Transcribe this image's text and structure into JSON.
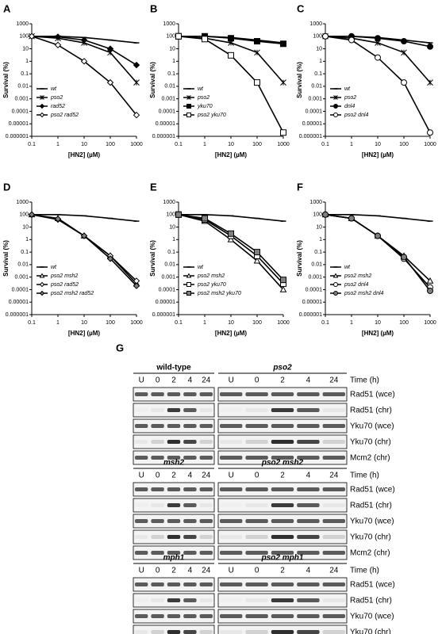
{
  "chart_data": [
    {
      "type": "line",
      "panel": "A",
      "x_label": "[HN2] (µM)",
      "y_label": "Survival (%)",
      "xscale": "log",
      "yscale": "log",
      "x": [
        0.1,
        1,
        10,
        100,
        1000
      ],
      "xlim": [
        0.1,
        1000
      ],
      "xticks": [
        0.1,
        1,
        10,
        100,
        1000
      ],
      "ylim": [
        1e-06,
        1000
      ],
      "yticks": [
        {
          "value": 1e-06,
          "label": "0.000001"
        },
        1e-05,
        0.0001,
        0.001,
        0.01,
        0.1,
        1,
        10,
        100,
        1000
      ],
      "series": [
        {
          "name": "wt",
          "color": "#000000",
          "marker": "dash",
          "marker_fill": "#000000",
          "values": [
            100,
            100,
            80,
            50,
            30
          ]
        },
        {
          "name": "pso2",
          "color": "#000000",
          "marker": "star",
          "marker_fill": "#000000",
          "values": [
            100,
            70,
            30,
            5,
            0.02
          ]
        },
        {
          "name": "rad52",
          "color": "#000000",
          "marker": "diamond",
          "marker_fill": "#000000",
          "values": [
            100,
            90,
            50,
            10,
            0.5
          ]
        },
        {
          "name": "pso2 rad52",
          "color": "#000000",
          "marker": "diamond",
          "marker_fill": "#ffffff",
          "values": [
            100,
            20,
            1,
            0.02,
            5e-05
          ]
        }
      ]
    },
    {
      "type": "line",
      "panel": "B",
      "x_label": "[HN2] (µM)",
      "y_label": "Survival (%)",
      "xscale": "log",
      "yscale": "log",
      "x": [
        0.1,
        1,
        10,
        100,
        1000
      ],
      "xlim": [
        0.1,
        1000
      ],
      "xticks": [
        0.1,
        1,
        10,
        100,
        1000
      ],
      "ylim": [
        1e-06,
        1000
      ],
      "yticks": [
        {
          "value": 1e-06,
          "label": "0.000001"
        },
        1e-05,
        0.0001,
        0.001,
        0.01,
        0.1,
        1,
        10,
        100,
        1000
      ],
      "series": [
        {
          "name": "wt",
          "color": "#000000",
          "marker": "dash",
          "marker_fill": "#000000",
          "values": [
            100,
            100,
            80,
            50,
            30
          ]
        },
        {
          "name": "pso2",
          "color": "#000000",
          "marker": "star",
          "marker_fill": "#000000",
          "values": [
            100,
            70,
            30,
            5,
            0.02
          ]
        },
        {
          "name": "yku70",
          "color": "#000000",
          "marker": "square",
          "marker_fill": "#000000",
          "values": [
            100,
            100,
            70,
            40,
            25
          ]
        },
        {
          "name": "pso2 yku70",
          "color": "#000000",
          "marker": "square",
          "marker_fill": "#ffffff",
          "values": [
            100,
            60,
            3,
            0.02,
            2e-06
          ]
        }
      ]
    },
    {
      "type": "line",
      "panel": "C",
      "x_label": "[HN2] (µM)",
      "y_label": "Survival (%)",
      "xscale": "log",
      "yscale": "log",
      "x": [
        0.1,
        1,
        10,
        100,
        1000
      ],
      "xlim": [
        0.1,
        1000
      ],
      "xticks": [
        0.1,
        1,
        10,
        100,
        1000
      ],
      "ylim": [
        1e-06,
        1000
      ],
      "yticks": [
        {
          "value": 1e-06,
          "label": "0.000001"
        },
        1e-05,
        0.0001,
        0.001,
        0.01,
        0.1,
        1,
        10,
        100,
        1000
      ],
      "series": [
        {
          "name": "wt",
          "color": "#000000",
          "marker": "dash",
          "marker_fill": "#000000",
          "values": [
            100,
            100,
            80,
            50,
            30
          ]
        },
        {
          "name": "pso2",
          "color": "#000000",
          "marker": "star",
          "marker_fill": "#000000",
          "values": [
            100,
            70,
            30,
            5,
            0.02
          ]
        },
        {
          "name": "dnl4",
          "color": "#000000",
          "marker": "circle",
          "marker_fill": "#000000",
          "values": [
            100,
            100,
            70,
            40,
            15
          ]
        },
        {
          "name": "pso2 dnl4",
          "color": "#000000",
          "marker": "circle",
          "marker_fill": "#ffffff",
          "values": [
            100,
            50,
            2,
            0.02,
            2e-06
          ]
        }
      ]
    },
    {
      "type": "line",
      "panel": "D",
      "x_label": "[HN2] (µM)",
      "y_label": "Survival (%)",
      "xscale": "log",
      "yscale": "log",
      "x": [
        0.1,
        1,
        10,
        100,
        1000
      ],
      "xlim": [
        0.1,
        1000
      ],
      "xticks": [
        0.1,
        1,
        10,
        100,
        1000
      ],
      "ylim": [
        1e-06,
        1000
      ],
      "yticks": [
        {
          "value": 1e-06,
          "label": "0.000001"
        },
        1e-05,
        0.0001,
        0.001,
        0.01,
        0.1,
        1,
        10,
        100,
        1000
      ],
      "series": [
        {
          "name": "wt",
          "color": "#000000",
          "marker": "dash",
          "marker_fill": "#000000",
          "values": [
            100,
            100,
            80,
            50,
            30
          ]
        },
        {
          "name": "pso2 msh2",
          "color": "#000000",
          "marker": "triangle",
          "marker_fill": "#ffffff",
          "values": [
            100,
            50,
            2,
            0.05,
            0.0003
          ]
        },
        {
          "name": "pso2 rad52",
          "color": "#000000",
          "marker": "diamond",
          "marker_fill": "#ffffff",
          "values": [
            100,
            40,
            2,
            0.05,
            0.0005
          ]
        },
        {
          "name": "pso2 msh2 rad52",
          "color": "#000000",
          "marker": "diamond",
          "marker_fill": "#808080",
          "values": [
            100,
            45,
            2,
            0.03,
            0.0002
          ]
        }
      ]
    },
    {
      "type": "line",
      "panel": "E",
      "x_label": "[HN2] (µM)",
      "y_label": "Survival (%)",
      "xscale": "log",
      "yscale": "log",
      "x": [
        0.1,
        1,
        10,
        100,
        1000
      ],
      "xlim": [
        0.1,
        1000
      ],
      "xticks": [
        0.1,
        1,
        10,
        100,
        1000
      ],
      "ylim": [
        1e-06,
        1000
      ],
      "yticks": [
        {
          "value": 1e-06,
          "label": "0.000001"
        },
        1e-05,
        0.0001,
        0.001,
        0.01,
        0.1,
        1,
        10,
        100,
        1000
      ],
      "series": [
        {
          "name": "wt",
          "color": "#000000",
          "marker": "dash",
          "marker_fill": "#000000",
          "values": [
            100,
            100,
            80,
            50,
            30
          ]
        },
        {
          "name": "pso2 msh2",
          "color": "#000000",
          "marker": "triangle",
          "marker_fill": "#ffffff",
          "values": [
            100,
            30,
            1,
            0.02,
            0.0001
          ]
        },
        {
          "name": "pso2 yku70",
          "color": "#000000",
          "marker": "square",
          "marker_fill": "#ffffff",
          "values": [
            100,
            40,
            2,
            0.05,
            0.0003
          ]
        },
        {
          "name": "pso2 msh2 yku70",
          "color": "#000000",
          "marker": "square",
          "marker_fill": "#808080",
          "values": [
            100,
            50,
            3,
            0.1,
            0.0006
          ]
        }
      ]
    },
    {
      "type": "line",
      "panel": "F",
      "x_label": "[HN2] (µM)",
      "y_label": "Survival (%)",
      "xscale": "log",
      "yscale": "log",
      "x": [
        0.1,
        1,
        10,
        100,
        1000
      ],
      "xlim": [
        0.1,
        1000
      ],
      "xticks": [
        0.1,
        1,
        10,
        100,
        1000
      ],
      "ylim": [
        1e-06,
        1000
      ],
      "yticks": [
        {
          "value": 1e-06,
          "label": "0.000001"
        },
        1e-05,
        0.0001,
        0.001,
        0.01,
        0.1,
        1,
        10,
        100,
        1000
      ],
      "series": [
        {
          "name": "wt",
          "color": "#000000",
          "marker": "dash",
          "marker_fill": "#000000",
          "values": [
            100,
            100,
            80,
            50,
            30
          ]
        },
        {
          "name": "pso2 msh2",
          "color": "#000000",
          "marker": "triangle",
          "marker_fill": "#ffffff",
          "values": [
            100,
            50,
            2,
            0.05,
            0.0005
          ]
        },
        {
          "name": "pso2 dnl4",
          "color": "#000000",
          "marker": "circle",
          "marker_fill": "#ffffff",
          "values": [
            100,
            50,
            2,
            0.03,
            0.00015
          ]
        },
        {
          "name": "pso2 msh2 dnl4",
          "color": "#000000",
          "marker": "circle",
          "marker_fill": "#808080",
          "values": [
            100,
            50,
            2,
            0.04,
            8e-05
          ]
        }
      ]
    }
  ],
  "panel_g": {
    "label": "G",
    "time_label": "Time (h)",
    "lanes": [
      "U",
      "0",
      "2",
      "4",
      "24"
    ],
    "rows": [
      "Rad51 (wce)",
      "Rad51 (chr)",
      "Yku70 (wce)",
      "Yku70 (chr)",
      "Mcm2 (chr)"
    ],
    "blocks": [
      {
        "left": "wild-type",
        "right": "pso2"
      },
      {
        "left": "msh2",
        "right": "pso2 msh2"
      },
      {
        "left": "mph1",
        "right": "pso2 mph1"
      }
    ]
  }
}
